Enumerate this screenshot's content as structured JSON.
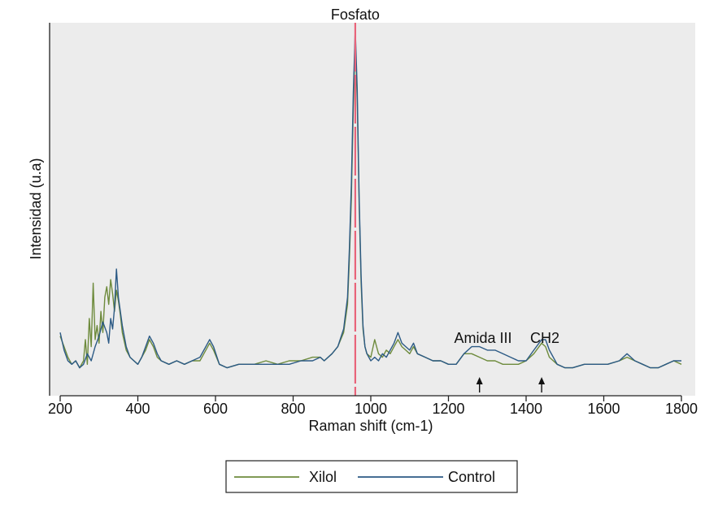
{
  "chart_data": {
    "type": "line",
    "title": "",
    "xlabel": "Raman shift (cm-1)",
    "ylabel": "Intensidad (u.a)",
    "xlim": [
      200,
      1800
    ],
    "ylim": [
      0,
      1
    ],
    "x_ticks": [
      200,
      400,
      600,
      800,
      1000,
      1200,
      1400,
      1600,
      1800
    ],
    "y_ticks_shown": false,
    "grid": false,
    "plot_background": "#ececec",
    "legend": {
      "position": "bottom",
      "entries": [
        "Xilol",
        "Control"
      ]
    },
    "annotations": [
      {
        "text": "Fosfato",
        "x": 960,
        "type": "vertical-dashed-line",
        "color": "#e8647a"
      },
      {
        "text": "Amida III",
        "x": 1280,
        "arrow": true
      },
      {
        "text": "CH2",
        "x": 1440,
        "arrow": true
      }
    ],
    "series": [
      {
        "name": "Xilol",
        "color": "#6e8b3d",
        "points": [
          [
            200,
            0.13
          ],
          [
            210,
            0.1
          ],
          [
            220,
            0.07
          ],
          [
            230,
            0.05
          ],
          [
            240,
            0.06
          ],
          [
            250,
            0.04
          ],
          [
            260,
            0.06
          ],
          [
            265,
            0.12
          ],
          [
            270,
            0.05
          ],
          [
            275,
            0.18
          ],
          [
            280,
            0.1
          ],
          [
            285,
            0.28
          ],
          [
            290,
            0.12
          ],
          [
            295,
            0.16
          ],
          [
            300,
            0.11
          ],
          [
            305,
            0.2
          ],
          [
            310,
            0.14
          ],
          [
            315,
            0.24
          ],
          [
            320,
            0.27
          ],
          [
            325,
            0.22
          ],
          [
            330,
            0.29
          ],
          [
            335,
            0.25
          ],
          [
            340,
            0.2
          ],
          [
            345,
            0.26
          ],
          [
            350,
            0.23
          ],
          [
            355,
            0.19
          ],
          [
            360,
            0.14
          ],
          [
            370,
            0.09
          ],
          [
            380,
            0.07
          ],
          [
            390,
            0.06
          ],
          [
            400,
            0.05
          ],
          [
            410,
            0.07
          ],
          [
            420,
            0.09
          ],
          [
            430,
            0.12
          ],
          [
            440,
            0.1
          ],
          [
            450,
            0.07
          ],
          [
            460,
            0.06
          ],
          [
            480,
            0.05
          ],
          [
            500,
            0.06
          ],
          [
            520,
            0.05
          ],
          [
            540,
            0.06
          ],
          [
            560,
            0.06
          ],
          [
            575,
            0.09
          ],
          [
            585,
            0.11
          ],
          [
            595,
            0.09
          ],
          [
            610,
            0.05
          ],
          [
            630,
            0.04
          ],
          [
            660,
            0.05
          ],
          [
            700,
            0.05
          ],
          [
            730,
            0.06
          ],
          [
            760,
            0.05
          ],
          [
            790,
            0.06
          ],
          [
            820,
            0.06
          ],
          [
            850,
            0.07
          ],
          [
            870,
            0.07
          ],
          [
            880,
            0.06
          ],
          [
            900,
            0.08
          ],
          [
            915,
            0.1
          ],
          [
            930,
            0.14
          ],
          [
            940,
            0.22
          ],
          [
            945,
            0.35
          ],
          [
            950,
            0.52
          ],
          [
            955,
            0.78
          ],
          [
            960,
            0.97
          ],
          [
            965,
            0.8
          ],
          [
            970,
            0.5
          ],
          [
            975,
            0.28
          ],
          [
            980,
            0.15
          ],
          [
            985,
            0.1
          ],
          [
            990,
            0.08
          ],
          [
            1000,
            0.07
          ],
          [
            1010,
            0.12
          ],
          [
            1020,
            0.08
          ],
          [
            1030,
            0.07
          ],
          [
            1040,
            0.09
          ],
          [
            1050,
            0.08
          ],
          [
            1060,
            0.1
          ],
          [
            1070,
            0.12
          ],
          [
            1080,
            0.1
          ],
          [
            1090,
            0.09
          ],
          [
            1100,
            0.08
          ],
          [
            1110,
            0.1
          ],
          [
            1120,
            0.08
          ],
          [
            1140,
            0.07
          ],
          [
            1160,
            0.06
          ],
          [
            1180,
            0.06
          ],
          [
            1200,
            0.05
          ],
          [
            1220,
            0.05
          ],
          [
            1240,
            0.08
          ],
          [
            1260,
            0.08
          ],
          [
            1280,
            0.07
          ],
          [
            1300,
            0.06
          ],
          [
            1320,
            0.06
          ],
          [
            1340,
            0.05
          ],
          [
            1360,
            0.05
          ],
          [
            1380,
            0.05
          ],
          [
            1400,
            0.06
          ],
          [
            1420,
            0.08
          ],
          [
            1440,
            0.11
          ],
          [
            1450,
            0.1
          ],
          [
            1460,
            0.07
          ],
          [
            1480,
            0.05
          ],
          [
            1500,
            0.04
          ],
          [
            1520,
            0.04
          ],
          [
            1550,
            0.05
          ],
          [
            1580,
            0.05
          ],
          [
            1610,
            0.05
          ],
          [
            1640,
            0.06
          ],
          [
            1660,
            0.07
          ],
          [
            1680,
            0.06
          ],
          [
            1700,
            0.05
          ],
          [
            1720,
            0.04
          ],
          [
            1740,
            0.04
          ],
          [
            1760,
            0.05
          ],
          [
            1780,
            0.06
          ],
          [
            1800,
            0.05
          ]
        ]
      },
      {
        "name": "Control",
        "color": "#2c5a85",
        "points": [
          [
            200,
            0.14
          ],
          [
            210,
            0.09
          ],
          [
            220,
            0.06
          ],
          [
            230,
            0.05
          ],
          [
            240,
            0.06
          ],
          [
            250,
            0.04
          ],
          [
            260,
            0.05
          ],
          [
            270,
            0.08
          ],
          [
            280,
            0.06
          ],
          [
            290,
            0.1
          ],
          [
            300,
            0.13
          ],
          [
            310,
            0.17
          ],
          [
            320,
            0.14
          ],
          [
            325,
            0.11
          ],
          [
            330,
            0.18
          ],
          [
            335,
            0.15
          ],
          [
            340,
            0.21
          ],
          [
            345,
            0.32
          ],
          [
            350,
            0.24
          ],
          [
            355,
            0.2
          ],
          [
            360,
            0.16
          ],
          [
            370,
            0.1
          ],
          [
            380,
            0.07
          ],
          [
            390,
            0.06
          ],
          [
            400,
            0.05
          ],
          [
            410,
            0.07
          ],
          [
            420,
            0.1
          ],
          [
            430,
            0.13
          ],
          [
            440,
            0.11
          ],
          [
            450,
            0.08
          ],
          [
            460,
            0.06
          ],
          [
            480,
            0.05
          ],
          [
            500,
            0.06
          ],
          [
            520,
            0.05
          ],
          [
            540,
            0.06
          ],
          [
            560,
            0.07
          ],
          [
            575,
            0.1
          ],
          [
            585,
            0.12
          ],
          [
            595,
            0.1
          ],
          [
            610,
            0.05
          ],
          [
            630,
            0.04
          ],
          [
            660,
            0.05
          ],
          [
            700,
            0.05
          ],
          [
            730,
            0.05
          ],
          [
            760,
            0.05
          ],
          [
            790,
            0.05
          ],
          [
            820,
            0.06
          ],
          [
            850,
            0.06
          ],
          [
            870,
            0.07
          ],
          [
            880,
            0.06
          ],
          [
            900,
            0.08
          ],
          [
            915,
            0.1
          ],
          [
            930,
            0.15
          ],
          [
            940,
            0.24
          ],
          [
            945,
            0.38
          ],
          [
            950,
            0.56
          ],
          [
            955,
            0.82
          ],
          [
            960,
            1.0
          ],
          [
            965,
            0.83
          ],
          [
            970,
            0.52
          ],
          [
            975,
            0.3
          ],
          [
            980,
            0.16
          ],
          [
            985,
            0.1
          ],
          [
            990,
            0.08
          ],
          [
            1000,
            0.06
          ],
          [
            1010,
            0.07
          ],
          [
            1020,
            0.06
          ],
          [
            1030,
            0.08
          ],
          [
            1040,
            0.07
          ],
          [
            1050,
            0.09
          ],
          [
            1060,
            0.11
          ],
          [
            1070,
            0.14
          ],
          [
            1080,
            0.11
          ],
          [
            1090,
            0.1
          ],
          [
            1100,
            0.09
          ],
          [
            1110,
            0.11
          ],
          [
            1120,
            0.08
          ],
          [
            1140,
            0.07
          ],
          [
            1160,
            0.06
          ],
          [
            1180,
            0.06
          ],
          [
            1200,
            0.05
          ],
          [
            1220,
            0.05
          ],
          [
            1240,
            0.08
          ],
          [
            1260,
            0.1
          ],
          [
            1280,
            0.1
          ],
          [
            1300,
            0.09
          ],
          [
            1320,
            0.09
          ],
          [
            1340,
            0.08
          ],
          [
            1360,
            0.07
          ],
          [
            1380,
            0.06
          ],
          [
            1400,
            0.06
          ],
          [
            1420,
            0.09
          ],
          [
            1440,
            0.12
          ],
          [
            1450,
            0.12
          ],
          [
            1460,
            0.09
          ],
          [
            1480,
            0.05
          ],
          [
            1500,
            0.04
          ],
          [
            1520,
            0.04
          ],
          [
            1550,
            0.05
          ],
          [
            1580,
            0.05
          ],
          [
            1610,
            0.05
          ],
          [
            1640,
            0.06
          ],
          [
            1660,
            0.08
          ],
          [
            1680,
            0.06
          ],
          [
            1700,
            0.05
          ],
          [
            1720,
            0.04
          ],
          [
            1740,
            0.04
          ],
          [
            1760,
            0.05
          ],
          [
            1780,
            0.06
          ],
          [
            1800,
            0.06
          ]
        ]
      }
    ]
  }
}
